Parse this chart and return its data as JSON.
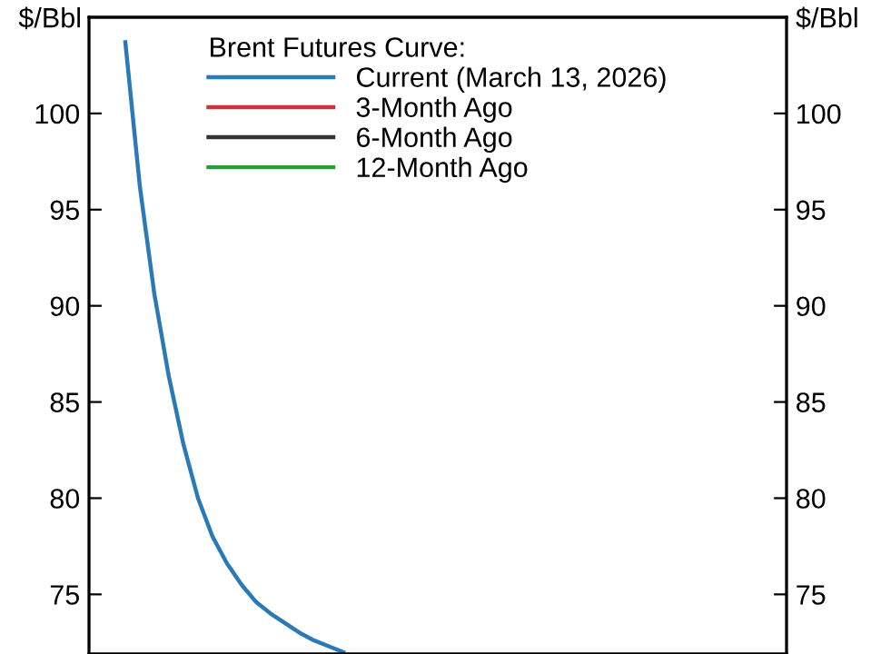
{
  "chart_data": {
    "type": "line",
    "legend_title": "Brent Futures Curve:",
    "ylabel": "$/Bbl",
    "y2label": "$/Bbl",
    "categories": [
      null,
      null,
      null,
      null,
      null,
      null,
      null,
      null,
      null,
      null,
      null,
      null,
      null,
      null,
      null,
      null,
      null,
      null,
      null,
      null,
      null,
      null,
      null,
      null,
      null,
      null,
      null,
      null,
      null,
      null,
      null,
      null,
      null,
      null,
      null,
      null,
      null,
      null,
      null,
      null,
      null,
      null,
      null,
      null,
      null,
      null,
      null,
      null
    ],
    "series": [
      {
        "name": "Current (March 13, 2026)",
        "color": "#2a7ab8",
        "values": [
          null,
          null,
          103.7,
          96.2,
          90.6,
          86.3,
          82.8,
          80.0,
          78.0,
          76.6,
          75.5,
          74.6,
          74.0,
          73.5,
          73.0,
          72.6,
          72.3,
          72.0,
          null,
          null,
          null,
          null,
          null,
          null,
          null,
          null,
          null,
          null,
          null,
          null,
          null,
          null,
          null,
          null,
          null,
          null,
          null,
          null,
          null,
          null,
          null,
          null,
          null,
          null,
          null,
          null,
          null,
          null
        ]
      },
      {
        "name": "3-Month Ago",
        "color": "#c8353f",
        "values": [
          null,
          null,
          null,
          null,
          null,
          null,
          null,
          null,
          null,
          null,
          null,
          null,
          null,
          null,
          null,
          null,
          null,
          null,
          null,
          null,
          null,
          null,
          null,
          null,
          null,
          null,
          null,
          null,
          null,
          null,
          null,
          null,
          null,
          null,
          null,
          null,
          null,
          null,
          null,
          null,
          null,
          null,
          null,
          null,
          null,
          null,
          null,
          null
        ]
      },
      {
        "name": "6-Month Ago",
        "color": "#333333",
        "values": [
          null,
          null,
          null,
          null,
          null,
          null,
          null,
          null,
          null,
          null,
          null,
          null,
          null,
          null,
          null,
          null,
          null,
          null,
          null,
          null,
          null,
          null,
          null,
          null,
          null,
          null,
          null,
          null,
          null,
          null,
          null,
          null,
          null,
          null,
          null,
          null,
          null,
          null,
          null,
          null,
          null,
          null,
          null,
          null,
          null,
          null,
          null,
          null
        ]
      },
      {
        "name": "12-Month Ago",
        "color": "#2e9a3a",
        "values": [
          null,
          null,
          null,
          null,
          null,
          null,
          null,
          null,
          null,
          null,
          null,
          null,
          null,
          null,
          null,
          null,
          null,
          null,
          null,
          null,
          null,
          null,
          null,
          null,
          null,
          null,
          null,
          null,
          null,
          null,
          null,
          null,
          null,
          null,
          null,
          null,
          null,
          null,
          null,
          null,
          null,
          null,
          null,
          null,
          null,
          null,
          null,
          null
        ]
      }
    ],
    "ylim": [
      71.9,
      105
    ],
    "yticks": [
      75,
      80,
      85,
      90,
      95,
      100
    ],
    "y2lim": [
      71.9,
      105
    ],
    "y2ticks": [
      75,
      80,
      85,
      90,
      95,
      100
    ],
    "grid": false,
    "legend": "top",
    "marker": "none",
    "line_style": "solid"
  }
}
